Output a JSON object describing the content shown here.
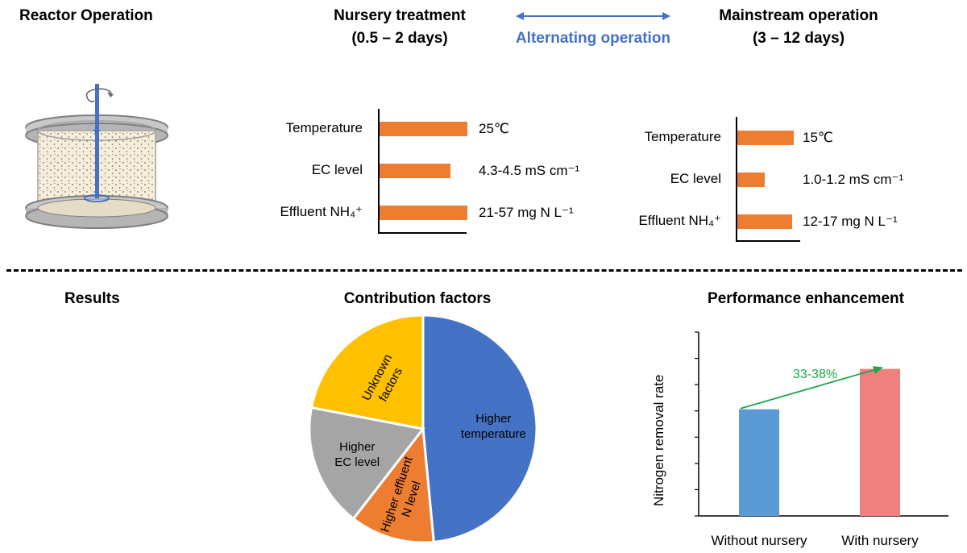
{
  "headings": {
    "reactor_operation": "Reactor Operation",
    "nursery_title": "Nursery treatment",
    "nursery_days": "(0.5 – 2 days)",
    "alternating": "Alternating operation",
    "mainstream_title": "Mainstream operation",
    "mainstream_days": "(3 – 12 days)",
    "results": "Results",
    "contribution": "Contribution factors",
    "performance": "Performance enhancement"
  },
  "colors": {
    "orange_bar": "#ED7D31",
    "blue_arrow": "#4472C4",
    "pie_blue": "#4472C4",
    "pie_orange": "#ED7D31",
    "pie_gray": "#A5A5A5",
    "pie_yellow": "#FFC000",
    "bar_blue": "#5B9BD5",
    "bar_pink": "#F08080",
    "green_arrow": "#1AA64A"
  },
  "nursery_panel": {
    "labels": [
      "Temperature",
      "EC level",
      "Effluent NH₄⁺"
    ],
    "values_text": [
      "25℃",
      "4.3-4.5 mS cm⁻¹",
      "21-57 mg N L⁻¹"
    ]
  },
  "mainstream_panel": {
    "labels": [
      "Temperature",
      "EC level",
      "Effluent NH₄⁺"
    ],
    "values_text": [
      "15℃",
      "1.0-1.2 mS cm⁻¹",
      "12-17 mg N L⁻¹"
    ]
  },
  "chart_data": [
    {
      "type": "pie",
      "title": "Contribution factors",
      "labels": [
        "Higher temperature",
        "Higher effluent N level",
        "Higher EC level",
        "Unknown factors"
      ],
      "label_lines": [
        [
          "Higher",
          "temperature"
        ],
        [
          "Higher effluent",
          "N level"
        ],
        [
          "Higher",
          "EC level"
        ],
        [
          "Unknown",
          "factors"
        ]
      ],
      "values": [
        48.5,
        12,
        17.5,
        22
      ],
      "colors": [
        "#4472C4",
        "#ED7D31",
        "#A5A5A5",
        "#FFC000"
      ]
    },
    {
      "type": "bar",
      "title": "Performance enhancement",
      "categories": [
        "Without nursery",
        "With nursery"
      ],
      "values": [
        0.58,
        0.8
      ],
      "ylabel": "Nitrogen removal rate",
      "ylim": [
        0,
        1
      ],
      "annotation": "33-38%",
      "colors": [
        "#5B9BD5",
        "#F08080"
      ]
    }
  ]
}
